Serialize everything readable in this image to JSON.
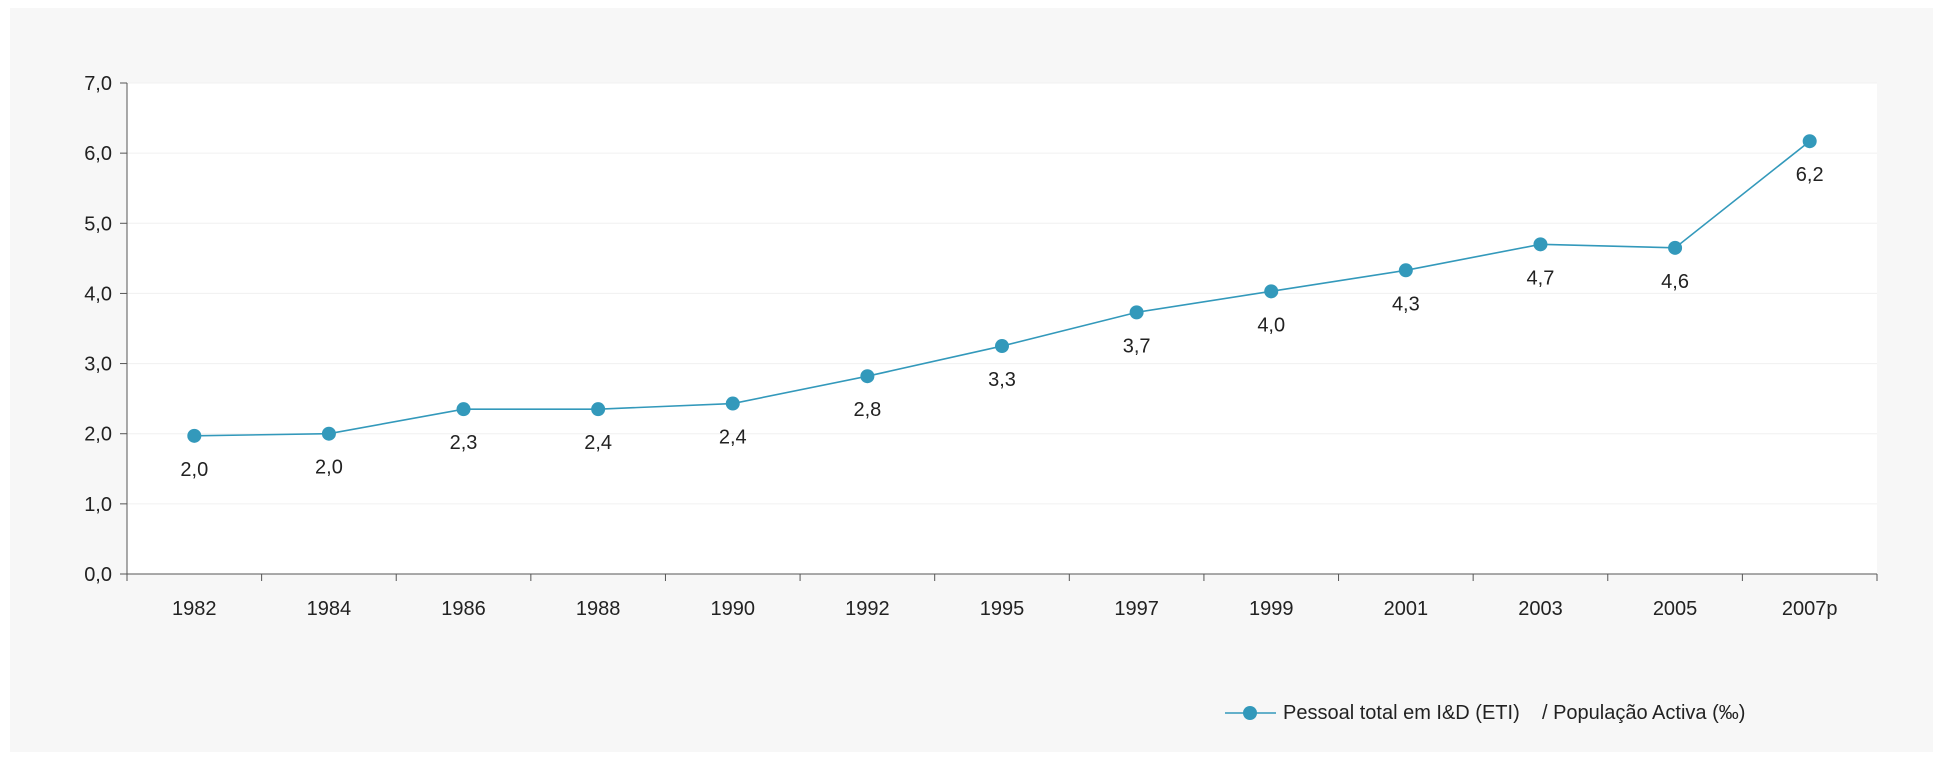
{
  "chart_data": {
    "type": "line",
    "categories": [
      "1982",
      "1984",
      "1986",
      "1988",
      "1990",
      "1992",
      "1995",
      "1997",
      "1999",
      "2001",
      "2003",
      "2005",
      "2007p"
    ],
    "series": [
      {
        "name": "Pessoal total em I&D (ETI)    / População Activa (‰)",
        "values": [
          1.97,
          2.0,
          2.35,
          2.35,
          2.43,
          2.82,
          3.25,
          3.73,
          4.03,
          4.33,
          4.7,
          4.65,
          6.17
        ],
        "labels": [
          "2,0",
          "2,0",
          "2,3",
          "2,4",
          "2,4",
          "2,8",
          "3,3",
          "3,7",
          "4,0",
          "4,3",
          "4,7",
          "4,6",
          "6,2"
        ]
      }
    ],
    "y_ticks": [
      "0,0",
      "1,0",
      "2,0",
      "3,0",
      "4,0",
      "5,0",
      "6,0",
      "7,0"
    ],
    "ylim": [
      0,
      7
    ],
    "grid": true,
    "legend_position": "bottom-right",
    "colors": {
      "series": "#3399bb",
      "outer_background": "#f7f7f7",
      "plot_background": "#ffffff",
      "axis": "#555555",
      "grid": "#f0f0f0",
      "text": "#222222"
    }
  }
}
